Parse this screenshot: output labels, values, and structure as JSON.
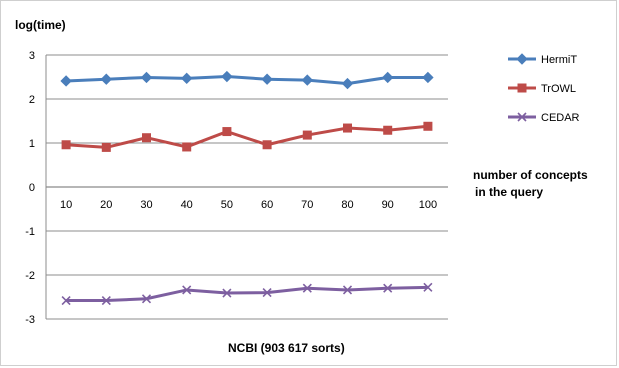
{
  "chart_data": {
    "type": "line",
    "ylabel": "log(time)",
    "xlabel": "NCBI (903 617 sorts)",
    "x_axis_note": [
      "number of  concepts",
      "in the query"
    ],
    "categories": [
      "10",
      "20",
      "30",
      "40",
      "50",
      "60",
      "70",
      "80",
      "90",
      "100"
    ],
    "y_ticks": [
      "3",
      "2",
      "1",
      "0",
      "-1",
      "-2",
      "-3"
    ],
    "ylim": [
      -3,
      3
    ],
    "grid": true,
    "legend_position": "right",
    "series": [
      {
        "name": "HermiT",
        "color": "#4a7ebb",
        "marker": "diamond",
        "values": [
          2.41,
          2.45,
          2.49,
          2.47,
          2.51,
          2.45,
          2.43,
          2.35,
          2.49,
          2.49
        ]
      },
      {
        "name": "TrOWL",
        "color": "#be4b48",
        "marker": "square",
        "values": [
          0.96,
          0.9,
          1.12,
          0.91,
          1.26,
          0.96,
          1.18,
          1.34,
          1.29,
          1.38
        ]
      },
      {
        "name": "CEDAR",
        "color": "#7d5fa0",
        "marker": "x",
        "values": [
          -2.58,
          -2.58,
          -2.54,
          -2.34,
          -2.41,
          -2.4,
          -2.3,
          -2.34,
          -2.3,
          -2.28
        ]
      }
    ]
  }
}
